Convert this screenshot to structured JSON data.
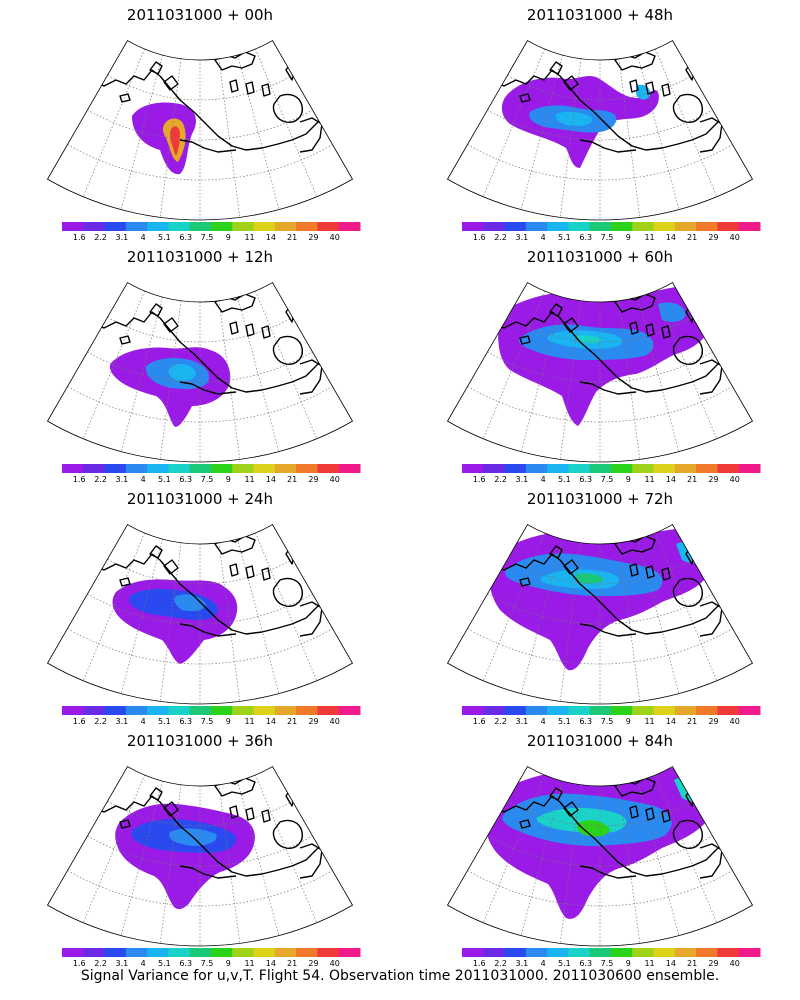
{
  "panels": [
    {
      "title": "2011031000 + 00h",
      "lead_h": 0,
      "max_level": 40
    },
    {
      "title": "2011031000 + 48h",
      "lead_h": 48,
      "max_level": 5.1
    },
    {
      "title": "2011031000 + 12h",
      "lead_h": 12,
      "max_level": 5.1
    },
    {
      "title": "2011031000 + 60h",
      "lead_h": 60,
      "max_level": 6.3
    },
    {
      "title": "2011031000 + 24h",
      "lead_h": 24,
      "max_level": 4
    },
    {
      "title": "2011031000 + 72h",
      "lead_h": 72,
      "max_level": 7.5
    },
    {
      "title": "2011031000 + 36h",
      "lead_h": 36,
      "max_level": 4
    },
    {
      "title": "2011031000 + 84h",
      "lead_h": 84,
      "max_level": 9
    }
  ],
  "colorbar": {
    "labels": [
      "1.6",
      "2.2",
      "3.1",
      "4",
      "5.1",
      "6.3",
      "7.5",
      "9",
      "11",
      "14",
      "21",
      "29",
      "40"
    ],
    "colors": [
      "#9a1ae6",
      "#6a2ae6",
      "#2a4af0",
      "#2a8af0",
      "#1ab4f0",
      "#1ad2c8",
      "#1ac878",
      "#2ad21a",
      "#a0d21a",
      "#dcd21a",
      "#e6a82a",
      "#f07a2a",
      "#f03a3a",
      "#f01a8a"
    ]
  },
  "caption": "Signal Variance for u,v,T. Flight 54. Observation time 2011031000. 2011030600 ensemble."
}
